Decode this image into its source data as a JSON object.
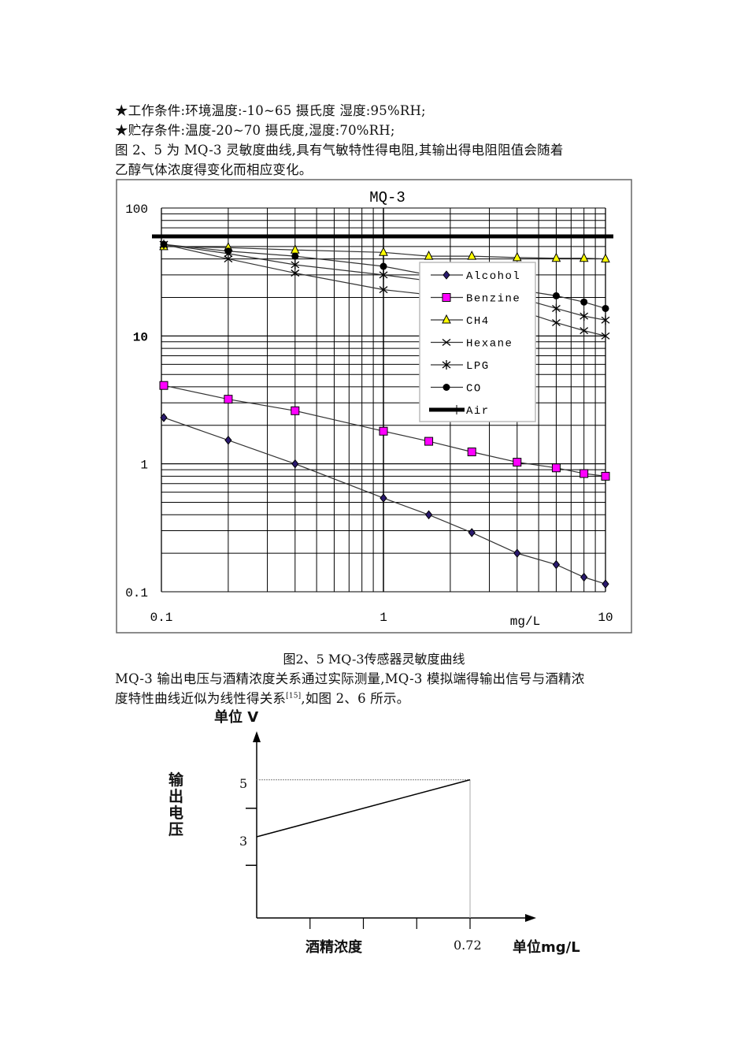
{
  "paragraphs": {
    "work_conditions": "★工作条件:环境温度:-10~65 摄氏度   湿度:95%RH;",
    "storage_conditions": "★贮存条件:温度-20~70 摄氏度,湿度:70%RH;",
    "intro_line1": "图 2、5 为 MQ-3 灵敏度曲线,具有气敏特性得电阻,其输出得电阻阻值会随着",
    "intro_line2": "乙醇气体浓度得变化而相应变化。",
    "caption_fig25": "图2、5 MQ-3传感器灵敏度曲线",
    "relation_line1": "MQ-3 输出电压与酒精浓度关系通过实际测量,MQ-3 模拟端得输出信号与酒精浓",
    "relation_line2_a": "度特性曲线近似为线性得关系",
    "relation_ref": "[15]",
    "relation_line2_b": ",如图 2、6 所示。"
  },
  "chart_data": [
    {
      "type": "line",
      "title": "MQ-3",
      "xlabel": "mg/L",
      "ylabel": "",
      "x_scale": "log",
      "y_scale": "log",
      "xlim": [
        0.1,
        10
      ],
      "ylim": [
        0.1,
        100
      ],
      "x_tick_labels": [
        "0.1",
        "1",
        "10"
      ],
      "y_tick_labels": [
        "100",
        "10",
        "1",
        "0.1"
      ],
      "grid": true,
      "legend": "center-right",
      "x": [
        0.1,
        0.2,
        0.4,
        1,
        1.6,
        2.5,
        4,
        6,
        8,
        10
      ],
      "series": [
        {
          "name": "Alcohol",
          "marker": "diamond",
          "color": "#2a1a6e",
          "values": [
            2.3,
            1.53,
            1.0,
            0.54,
            0.4,
            0.29,
            0.2,
            0.163,
            0.13,
            0.115
          ]
        },
        {
          "name": "Benzine",
          "marker": "square",
          "color": "#ff00ff",
          "values": [
            4.1,
            3.2,
            2.6,
            1.8,
            1.5,
            1.24,
            1.03,
            0.93,
            0.84,
            0.8
          ]
        },
        {
          "name": "CH4",
          "marker": "triangle",
          "color": "#ffff00",
          "values": [
            50,
            49,
            47,
            45,
            42,
            42,
            41,
            40.5,
            40.5,
            40
          ]
        },
        {
          "name": "Hexane",
          "marker": "x",
          "color": "#000000",
          "values": [
            52,
            40,
            31,
            23,
            21,
            19,
            16,
            12.7,
            11,
            10
          ]
        },
        {
          "name": "LPG",
          "marker": "asterisk",
          "color": "#000000",
          "values": [
            52,
            44,
            36,
            30,
            27,
            24,
            20,
            16.4,
            14.3,
            13.3
          ]
        },
        {
          "name": "CO",
          "marker": "circle",
          "color": "#000000",
          "values": [
            52,
            46,
            42,
            35,
            30,
            27,
            23,
            20.6,
            18.4,
            16.4
          ]
        },
        {
          "name": "Air",
          "marker": "thick-line",
          "color": "#000000",
          "values": [
            60,
            60,
            60,
            60,
            60,
            60,
            60,
            60,
            60,
            60
          ]
        }
      ]
    },
    {
      "type": "line",
      "title": "",
      "ylabel_unit": "单位 V",
      "ylabel": "输出电压",
      "xlabel": "酒精浓度",
      "xlabel_unit": "单位mg/L",
      "y_tick_labels": [
        "5",
        "3"
      ],
      "x_tick_labels": [
        "0.72"
      ],
      "x": [
        0,
        0.72
      ],
      "values": [
        3,
        5
      ],
      "grid": false
    }
  ]
}
